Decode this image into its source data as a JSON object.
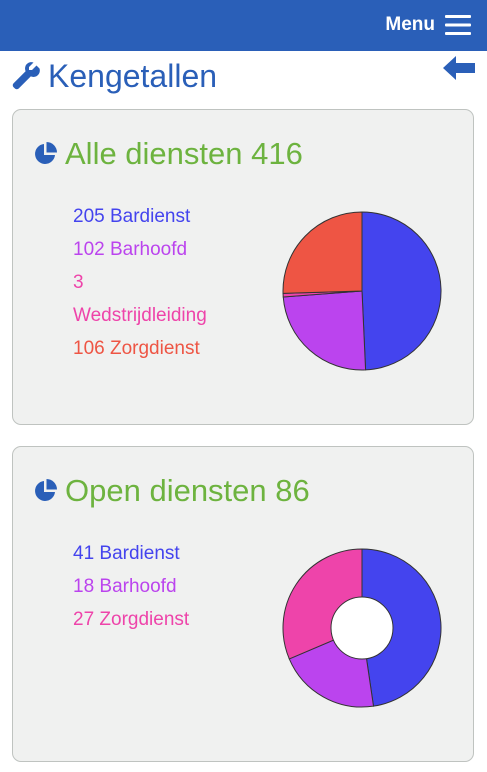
{
  "header": {
    "menu_label": "Menu"
  },
  "page": {
    "title": "Kengetallen"
  },
  "cards": [
    {
      "title": "Alle diensten 416",
      "legend": [
        {
          "text": "205 Bardienst",
          "color": "#4444ee"
        },
        {
          "text": "102 Barhoofd",
          "color": "#bb44ee"
        },
        {
          "text": "3",
          "color": "#ee44aa"
        },
        {
          "text": "Wedstrijdleiding",
          "color": "#ee44aa"
        },
        {
          "text": "106 Zorgdienst",
          "color": "#ee5544"
        }
      ]
    },
    {
      "title": "Open diensten 86",
      "legend": [
        {
          "text": "41 Bardienst",
          "color": "#4444ee"
        },
        {
          "text": "18 Barhoofd",
          "color": "#bb44ee"
        },
        {
          "text": "27 Zorgdienst",
          "color": "#ee44aa"
        }
      ]
    }
  ],
  "chart_data": [
    {
      "type": "pie",
      "categories": [
        "Bardienst",
        "Barhoofd",
        "Wedstrijdleiding",
        "Zorgdienst"
      ],
      "values": [
        205,
        102,
        3,
        106
      ],
      "colors": [
        "#4444ee",
        "#bb44ee",
        "#ee44aa",
        "#ee5544"
      ],
      "donut": false
    },
    {
      "type": "pie",
      "categories": [
        "Bardienst",
        "Barhoofd",
        "Zorgdienst"
      ],
      "values": [
        41,
        18,
        27
      ],
      "colors": [
        "#4444ee",
        "#bb44ee",
        "#ee44aa"
      ],
      "donut": true
    }
  ]
}
